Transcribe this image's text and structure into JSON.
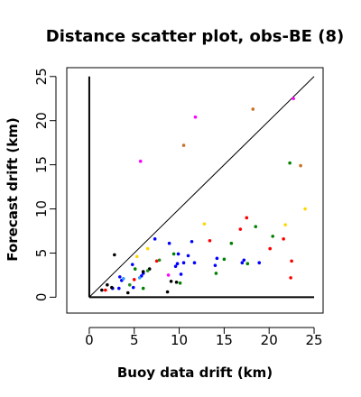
{
  "chart_data": {
    "type": "scatter",
    "title": "Distance scatter plot, obs-BE (8)",
    "xlabel": "Buoy data drift (km)",
    "ylabel": "Forecast drift (km)",
    "xlim": [
      -2.5,
      26
    ],
    "ylim": [
      -1.8,
      26
    ],
    "x_ticks": [
      0,
      5,
      10,
      15,
      20,
      25
    ],
    "y_ticks": [
      0,
      5,
      10,
      15,
      20,
      25
    ],
    "grid": false,
    "reference_line": {
      "x": [
        0,
        25
      ],
      "y": [
        0,
        25
      ]
    },
    "colors": {
      "black": "#000000",
      "blue": "#0000ff",
      "green": "#008000",
      "red": "#ff0000",
      "magenta": "#ff00ff",
      "yellow": "#ffd700",
      "orange": "#c8732a",
      "darkgreen": "#228b22",
      "lightblue": "#3399ff"
    },
    "points": [
      {
        "x": 5.7,
        "y": 15.4,
        "color": "magenta"
      },
      {
        "x": 11.8,
        "y": 20.4,
        "color": "magenta"
      },
      {
        "x": 22.7,
        "y": 22.5,
        "color": "magenta"
      },
      {
        "x": 8.8,
        "y": 2.5,
        "color": "magenta"
      },
      {
        "x": 18.2,
        "y": 21.3,
        "color": "orange"
      },
      {
        "x": 10.5,
        "y": 17.2,
        "color": "orange"
      },
      {
        "x": 23.5,
        "y": 14.9,
        "color": "orange"
      },
      {
        "x": 22.3,
        "y": 15.2,
        "color": "green"
      },
      {
        "x": 24.0,
        "y": 10.0,
        "color": "yellow"
      },
      {
        "x": 21.8,
        "y": 8.2,
        "color": "yellow"
      },
      {
        "x": 12.8,
        "y": 8.3,
        "color": "yellow"
      },
      {
        "x": 6.5,
        "y": 5.5,
        "color": "yellow"
      },
      {
        "x": 5.3,
        "y": 4.6,
        "color": "yellow"
      },
      {
        "x": 17.5,
        "y": 9.0,
        "color": "red"
      },
      {
        "x": 16.8,
        "y": 7.7,
        "color": "red"
      },
      {
        "x": 13.4,
        "y": 6.4,
        "color": "red"
      },
      {
        "x": 20.1,
        "y": 5.5,
        "color": "red"
      },
      {
        "x": 21.6,
        "y": 6.6,
        "color": "red"
      },
      {
        "x": 22.5,
        "y": 4.1,
        "color": "red"
      },
      {
        "x": 22.4,
        "y": 2.2,
        "color": "red"
      },
      {
        "x": 7.5,
        "y": 4.1,
        "color": "red"
      },
      {
        "x": 5.0,
        "y": 2.0,
        "color": "red"
      },
      {
        "x": 1.8,
        "y": 0.8,
        "color": "red"
      },
      {
        "x": 18.5,
        "y": 8.0,
        "color": "green"
      },
      {
        "x": 20.4,
        "y": 6.9,
        "color": "green"
      },
      {
        "x": 15.8,
        "y": 6.1,
        "color": "green"
      },
      {
        "x": 17.6,
        "y": 3.8,
        "color": "green"
      },
      {
        "x": 15.0,
        "y": 4.3,
        "color": "green"
      },
      {
        "x": 14.1,
        "y": 2.7,
        "color": "green"
      },
      {
        "x": 9.4,
        "y": 4.9,
        "color": "green"
      },
      {
        "x": 5.1,
        "y": 3.2,
        "color": "green"
      },
      {
        "x": 10.1,
        "y": 1.6,
        "color": "green"
      },
      {
        "x": 6.0,
        "y": 1.0,
        "color": "green"
      },
      {
        "x": 7.3,
        "y": 6.6,
        "color": "blue"
      },
      {
        "x": 8.9,
        "y": 6.1,
        "color": "blue"
      },
      {
        "x": 11.4,
        "y": 6.3,
        "color": "blue"
      },
      {
        "x": 9.9,
        "y": 4.9,
        "color": "blue"
      },
      {
        "x": 11.0,
        "y": 4.7,
        "color": "blue"
      },
      {
        "x": 14.2,
        "y": 4.4,
        "color": "blue"
      },
      {
        "x": 17.2,
        "y": 4.2,
        "color": "blue"
      },
      {
        "x": 18.9,
        "y": 3.9,
        "color": "blue"
      },
      {
        "x": 17.0,
        "y": 3.9,
        "color": "blue"
      },
      {
        "x": 14.0,
        "y": 3.6,
        "color": "blue"
      },
      {
        "x": 11.7,
        "y": 3.9,
        "color": "blue"
      },
      {
        "x": 10.5,
        "y": 3.9,
        "color": "blue"
      },
      {
        "x": 9.8,
        "y": 3.8,
        "color": "blue"
      },
      {
        "x": 9.6,
        "y": 3.5,
        "color": "blue"
      },
      {
        "x": 10.2,
        "y": 2.6,
        "color": "blue"
      },
      {
        "x": 6.0,
        "y": 2.7,
        "color": "blue"
      },
      {
        "x": 5.8,
        "y": 2.4,
        "color": "blue"
      },
      {
        "x": 4.8,
        "y": 3.7,
        "color": "blue"
      },
      {
        "x": 3.4,
        "y": 2.3,
        "color": "blue"
      },
      {
        "x": 3.6,
        "y": 1.9,
        "color": "blue"
      },
      {
        "x": 3.3,
        "y": 1.0,
        "color": "blue"
      },
      {
        "x": 4.9,
        "y": 1.1,
        "color": "blue"
      },
      {
        "x": 2.6,
        "y": 1.0,
        "color": "blue"
      },
      {
        "x": 2.8,
        "y": 4.8,
        "color": "black"
      },
      {
        "x": 6.7,
        "y": 3.2,
        "color": "black"
      },
      {
        "x": 6.0,
        "y": 2.9,
        "color": "black"
      },
      {
        "x": 8.7,
        "y": 0.6,
        "color": "black"
      },
      {
        "x": 9.1,
        "y": 1.8,
        "color": "black"
      },
      {
        "x": 9.7,
        "y": 1.7,
        "color": "black"
      },
      {
        "x": 4.3,
        "y": 0.5,
        "color": "black"
      },
      {
        "x": 2.0,
        "y": 1.4,
        "color": "black"
      },
      {
        "x": 2.5,
        "y": 1.1,
        "color": "black"
      },
      {
        "x": 1.4,
        "y": 0.8,
        "color": "black"
      },
      {
        "x": 4.5,
        "y": 1.4,
        "color": "darkgreen"
      },
      {
        "x": 6.5,
        "y": 3.0,
        "color": "darkgreen"
      },
      {
        "x": 5.6,
        "y": 2.2,
        "color": "lightblue"
      },
      {
        "x": 3.8,
        "y": 2.1,
        "color": "lightblue"
      },
      {
        "x": 7.8,
        "y": 4.2,
        "color": "darkgreen"
      }
    ]
  }
}
